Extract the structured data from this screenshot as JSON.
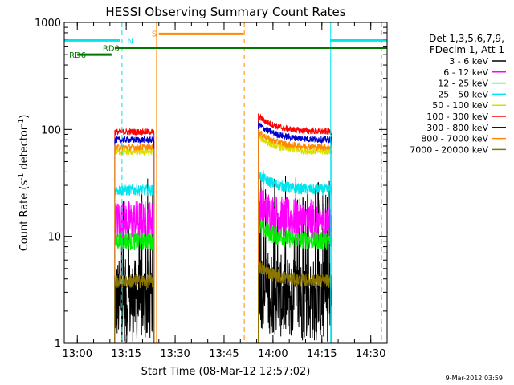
{
  "chart_data": {
    "type": "line",
    "title": "HESSI Observing Summary Count Rates",
    "xlabel": "Start Time (08-Mar-12 12:57:02)",
    "ylabel_main": "Count Rate (s",
    "ylabel_sup1": "-1",
    "ylabel_mid": " detector",
    "ylabel_sup2": "-1",
    "ylabel_end": ")",
    "y_scale": "log",
    "ylim": [
      1,
      1000
    ],
    "xlim_minutes": [
      -4,
      95
    ],
    "x_ticks": [
      {
        "m": 0,
        "label": "13:00"
      },
      {
        "m": 15,
        "label": "13:15"
      },
      {
        "m": 30,
        "label": "13:30"
      },
      {
        "m": 45,
        "label": "13:45"
      },
      {
        "m": 60,
        "label": "14:00"
      },
      {
        "m": 75,
        "label": "14:15"
      },
      {
        "m": 90,
        "label": "14:30"
      }
    ],
    "y_ticks": [
      {
        "v": 1,
        "label": "1"
      },
      {
        "v": 10,
        "label": "10"
      },
      {
        "v": 100,
        "label": "100"
      },
      {
        "v": 1000,
        "label": "1000"
      }
    ],
    "legend": {
      "header": [
        "Det 1,3,5,6,7,9,",
        "FDecim 1, Att 1"
      ],
      "placement": "right"
    },
    "data_intervals_minutes": [
      [
        11.5,
        23.5
      ],
      [
        55.5,
        78.0
      ]
    ],
    "series": [
      {
        "name": "3 - 6 keV",
        "color": "#000000",
        "level": 2.5,
        "noise": 0.9
      },
      {
        "name": "6 - 12 keV",
        "color": "#ff00ff",
        "level": 14,
        "noise": 0.45
      },
      {
        "name": "12 - 25 keV",
        "color": "#00ee00",
        "level": 9,
        "noise": 0.2
      },
      {
        "name": "25 - 50 keV",
        "color": "#00e5ee",
        "level": 27,
        "noise": 0.12
      },
      {
        "name": "50 - 100 keV",
        "color": "#dddd00",
        "level": 62,
        "noise": 0.08
      },
      {
        "name": "100 - 300 keV",
        "color": "#ff0000",
        "level": 95,
        "noise": 0.07
      },
      {
        "name": "300 - 800 keV",
        "color": "#0000cc",
        "level": 80,
        "noise": 0.07
      },
      {
        "name": "800 - 7000 keV",
        "color": "#ff8800",
        "level": 68,
        "noise": 0.07
      },
      {
        "name": "7000 - 20000 keV",
        "color": "#8b7500",
        "level": 3.8,
        "noise": 0.15
      }
    ],
    "flag_bars": [
      {
        "label": "RD0",
        "color": "#007700",
        "m_start": 11.5,
        "m_end": 95,
        "y_value": 580,
        "label_m": 7.8,
        "label_y": 580
      },
      {
        "label": "RD6",
        "color": "#007700",
        "m_start": 0,
        "m_end": 10.5,
        "y_value": 500,
        "label_m": -2.5,
        "label_y": 500
      },
      {
        "label": "N",
        "color": "#00e5ee",
        "m_start": -4,
        "m_end": 13,
        "y_value": 680,
        "label_m": 15.3,
        "label_y": 680
      },
      {
        "label": "",
        "color": "#00e5ee",
        "m_start": 77.5,
        "m_end": 95,
        "y_value": 680,
        "label_m": 0,
        "label_y": 0
      },
      {
        "label": "S",
        "color": "#ff8800",
        "m_start": 25,
        "m_end": 51,
        "y_value": 780,
        "label_m": 22.8,
        "label_y": 790
      }
    ],
    "vlines": [
      {
        "m": -4,
        "color": "#00e5ee",
        "dash": false
      },
      {
        "m": 13.7,
        "color": "#00e5ee",
        "dash": true
      },
      {
        "m": 24.3,
        "color": "#ff8800",
        "dash": false
      },
      {
        "m": 51.2,
        "color": "#ff8800",
        "dash": true
      },
      {
        "m": 77.7,
        "color": "#00e5ee",
        "dash": false
      },
      {
        "m": 93.3,
        "color": "#00e5ee",
        "dash": true
      }
    ],
    "footer_date": "9-Mar-2012 03:59"
  }
}
